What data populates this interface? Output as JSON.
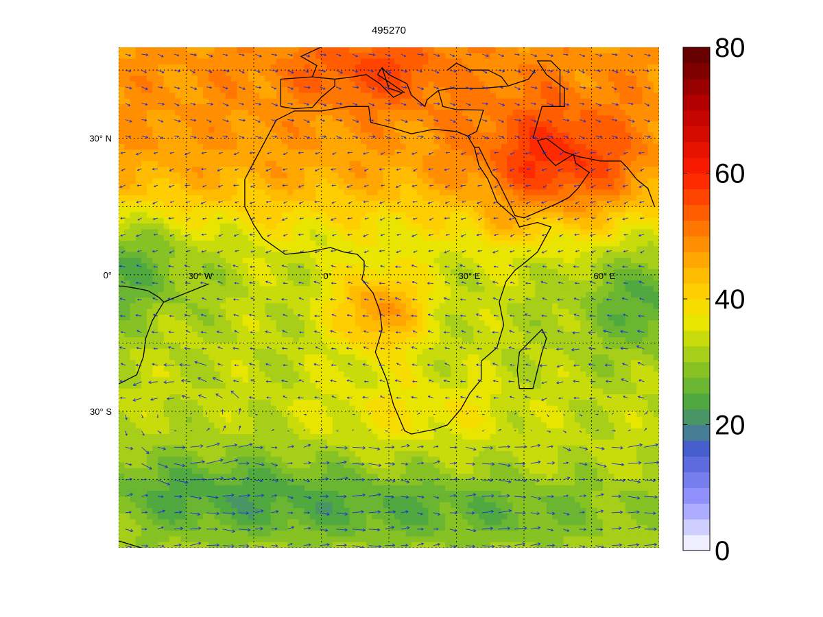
{
  "figure": {
    "title": "495270"
  },
  "map": {
    "projection": "equirectangular",
    "lon_range": [
      -45,
      75
    ],
    "lat_range": [
      -60,
      50
    ],
    "gridline_spacing_deg": 15,
    "lat_labels": [
      {
        "lat": 30,
        "text": "30° N"
      },
      {
        "lat": 0,
        "text": "0°"
      },
      {
        "lat": -30,
        "text": "30° S"
      }
    ],
    "lon_labels": [
      {
        "lon": -30,
        "text": "30° W"
      },
      {
        "lon": 0,
        "text": "0°"
      },
      {
        "lon": 30,
        "text": "30° E"
      },
      {
        "lon": 60,
        "text": "60° E"
      }
    ],
    "coastline_color": "#000000",
    "vector_color": "#1f2fd0"
  },
  "colorbar": {
    "min": 0,
    "max": 80,
    "levels": 32,
    "tick_labels": [
      "0",
      "20",
      "40",
      "60",
      "80"
    ],
    "tick_values": [
      0,
      20,
      40,
      60,
      80
    ]
  }
}
